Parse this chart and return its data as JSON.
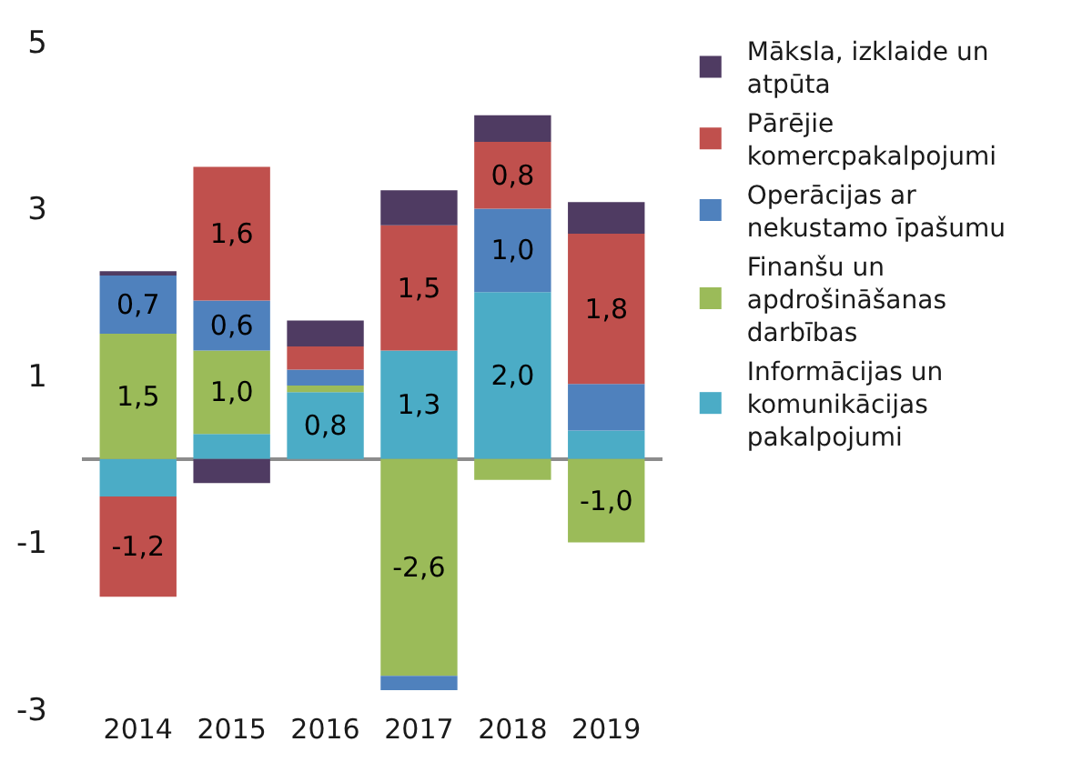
{
  "chart_data": {
    "type": "bar",
    "stacked": true,
    "categories": [
      "2014",
      "2015",
      "2016",
      "2017",
      "2018",
      "2019"
    ],
    "series": [
      {
        "name": "Informācijas un komunikācijas pakalpojumi",
        "color": "#4bacc6",
        "values": [
          -0.45,
          0.3,
          0.8,
          1.3,
          2.0,
          0.34
        ],
        "value_labels": [
          null,
          null,
          "0,8",
          "1,3",
          "2,0",
          null
        ]
      },
      {
        "name": "Finanšu un apdrošināšanas darbības",
        "color": "#9bbb59",
        "values": [
          1.5,
          1.0,
          0.08,
          -2.6,
          -0.25,
          -1.0
        ],
        "value_labels": [
          "1,5",
          "1,0",
          null,
          "-2,6",
          null,
          "-1,0"
        ]
      },
      {
        "name": "Operācijas ar nekustamo īpašumu",
        "color": "#4f81bd",
        "values": [
          0.7,
          0.6,
          0.19,
          -0.17,
          1.0,
          0.56
        ],
        "value_labels": [
          "0,7",
          "0,6",
          null,
          null,
          "1,0",
          null
        ]
      },
      {
        "name": "Pārējie komercpakalpojumi",
        "color": "#c0504d",
        "values": [
          -1.2,
          1.6,
          0.28,
          1.5,
          0.8,
          1.8
        ],
        "value_labels": [
          "-1,2",
          "1,6",
          null,
          "1,5",
          "0,8",
          "1,8"
        ]
      },
      {
        "name": "Māksla, izklaide un atpūta",
        "color": "#4f3b62",
        "values": [
          0.05,
          -0.29,
          0.31,
          0.42,
          0.32,
          0.38
        ],
        "value_labels": [
          null,
          null,
          null,
          null,
          null,
          null
        ]
      }
    ],
    "ylim": [
      -3,
      5
    ],
    "yticks": [
      -3,
      -1,
      1,
      3,
      5
    ],
    "grid": false,
    "legend": "right"
  }
}
